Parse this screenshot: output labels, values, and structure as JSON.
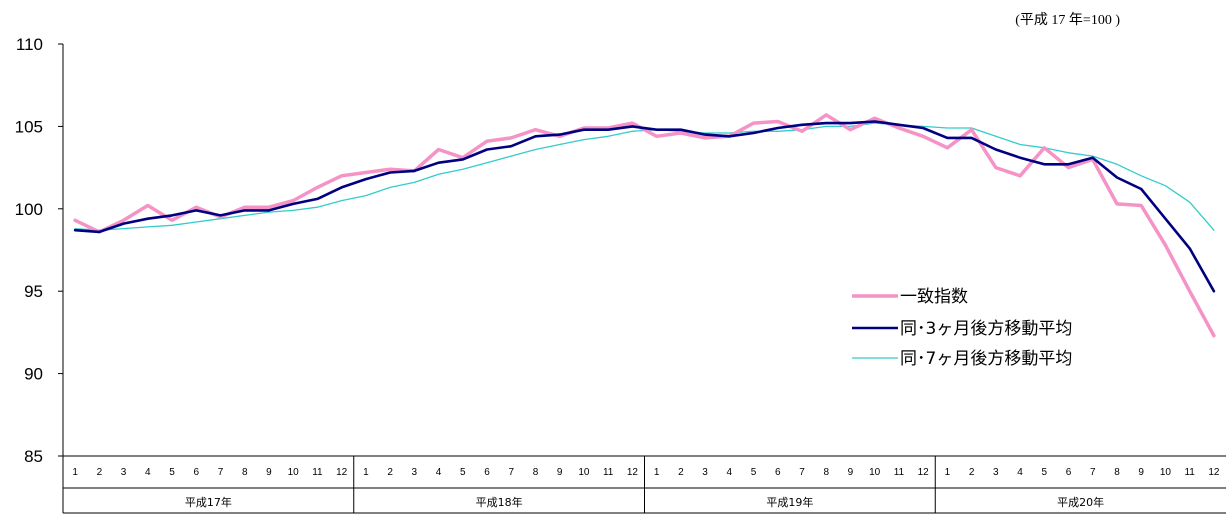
{
  "note": "(平成 17 年=100 )",
  "colors": {
    "coincident": "#f593c6",
    "ma3": "#000080",
    "ma7": "#33cccc",
    "axis": "#000000"
  },
  "chart_data": {
    "type": "line",
    "title": "",
    "xlabel": "",
    "ylabel": "",
    "ylim": [
      85,
      110
    ],
    "yticks": [
      110,
      105,
      100,
      95,
      90,
      85
    ],
    "grid": false,
    "legend_position": "center-right",
    "months": [
      "1",
      "2",
      "3",
      "4",
      "5",
      "6",
      "7",
      "8",
      "9",
      "10",
      "11",
      "12"
    ],
    "years": [
      "平成17年",
      "平成18年",
      "平成19年",
      "平成20年"
    ],
    "series": [
      {
        "name": "一致指数",
        "values": [
          99.3,
          98.6,
          99.3,
          100.2,
          99.3,
          100.1,
          99.5,
          100.1,
          100.1,
          100.5,
          101.3,
          102.0,
          102.2,
          102.4,
          102.3,
          103.6,
          103.1,
          104.1,
          104.3,
          104.8,
          104.4,
          104.9,
          104.9,
          105.2,
          104.4,
          104.6,
          104.3,
          104.4,
          105.2,
          105.3,
          104.7,
          105.7,
          104.8,
          105.5,
          104.9,
          104.4,
          103.7,
          104.8,
          102.5,
          102.0,
          103.7,
          102.5,
          103.0,
          100.3,
          100.2,
          97.8,
          95.0,
          92.3
        ]
      },
      {
        "name": "同･3ヶ月後方移動平均",
        "values": [
          98.7,
          98.6,
          99.1,
          99.4,
          99.6,
          99.9,
          99.6,
          99.9,
          99.9,
          100.3,
          100.6,
          101.3,
          101.8,
          102.2,
          102.3,
          102.8,
          103.0,
          103.6,
          103.8,
          104.4,
          104.5,
          104.8,
          104.8,
          105.0,
          104.8,
          104.8,
          104.5,
          104.4,
          104.6,
          104.9,
          105.1,
          105.2,
          105.2,
          105.3,
          105.1,
          104.9,
          104.3,
          104.3,
          103.6,
          103.1,
          102.7,
          102.7,
          103.1,
          101.9,
          101.2,
          99.4,
          97.6,
          95.0
        ]
      },
      {
        "name": "同･7ヶ月後方移動平均",
        "values": [
          98.8,
          98.7,
          98.8,
          98.9,
          99.0,
          99.2,
          99.4,
          99.6,
          99.8,
          99.9,
          100.1,
          100.5,
          100.8,
          101.3,
          101.6,
          102.1,
          102.4,
          102.8,
          103.2,
          103.6,
          103.9,
          104.2,
          104.4,
          104.7,
          104.8,
          104.7,
          104.6,
          104.6,
          104.7,
          104.7,
          104.8,
          105.0,
          105.0,
          105.2,
          105.1,
          105.0,
          104.9,
          104.9,
          104.4,
          103.9,
          103.7,
          103.4,
          103.2,
          102.7,
          102.0,
          101.4,
          100.4,
          98.7
        ]
      }
    ]
  }
}
